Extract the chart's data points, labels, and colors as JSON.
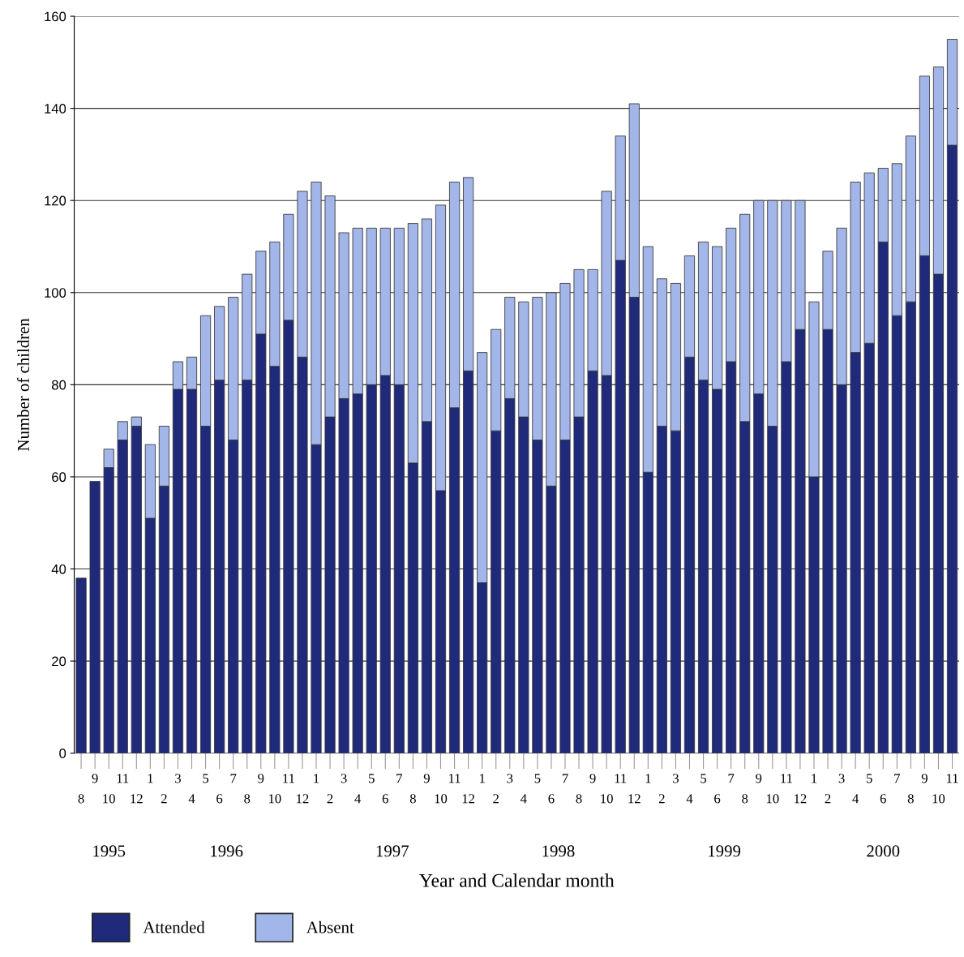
{
  "chart_data": {
    "type": "bar",
    "stacked": true,
    "xlabel": "Year and Calendar month",
    "ylabel": "Number of children",
    "categories": [
      "8",
      "9",
      "10",
      "11",
      "12",
      "1",
      "2",
      "3",
      "4",
      "5",
      "6",
      "7",
      "8",
      "9",
      "10",
      "11",
      "12",
      "1",
      "2",
      "3",
      "4",
      "5",
      "6",
      "7",
      "8",
      "9",
      "10",
      "11",
      "12",
      "1",
      "2",
      "3",
      "4",
      "5",
      "6",
      "7",
      "8",
      "9",
      "10",
      "11",
      "12",
      "1",
      "2",
      "3",
      "4",
      "5",
      "6",
      "7",
      "8",
      "9",
      "10",
      "11",
      "12",
      "1",
      "2",
      "3",
      "4",
      "5",
      "6",
      "7",
      "8",
      "9",
      "10",
      "11"
    ],
    "series": [
      {
        "name": "Attended",
        "color": "#1f2a7a",
        "values": [
          38,
          59,
          62,
          68,
          71,
          51,
          58,
          79,
          79,
          71,
          81,
          68,
          81,
          91,
          84,
          94,
          86,
          67,
          73,
          77,
          78,
          80,
          82,
          80,
          63,
          72,
          57,
          75,
          83,
          37,
          70,
          77,
          73,
          68,
          58,
          68,
          73,
          83,
          82,
          107,
          99,
          61,
          71,
          70,
          86,
          81,
          79,
          85,
          72,
          78,
          71,
          85,
          92,
          60,
          92,
          80,
          87,
          89,
          111,
          95,
          98,
          108,
          104,
          132
        ]
      },
      {
        "name": "Absent",
        "color": "#a3b6ea",
        "values": [
          0,
          0,
          4,
          4,
          2,
          16,
          13,
          6,
          7,
          24,
          16,
          31,
          23,
          18,
          27,
          23,
          36,
          57,
          48,
          36,
          36,
          34,
          32,
          34,
          52,
          44,
          62,
          49,
          42,
          50,
          22,
          22,
          25,
          31,
          42,
          34,
          32,
          22,
          40,
          27,
          42,
          49,
          32,
          32,
          22,
          30,
          31,
          29,
          45,
          42,
          49,
          35,
          28,
          38,
          17,
          34,
          37,
          37,
          16,
          33,
          36,
          39,
          45,
          23
        ]
      }
    ],
    "ylim": [
      0,
      160
    ],
    "yticks": [
      0,
      20,
      40,
      60,
      80,
      100,
      120,
      140,
      160
    ],
    "grid": "y",
    "legend": "bottom left",
    "annotations": [
      "1995",
      "1996",
      "1997",
      "1998",
      "1999",
      "2000"
    ]
  }
}
